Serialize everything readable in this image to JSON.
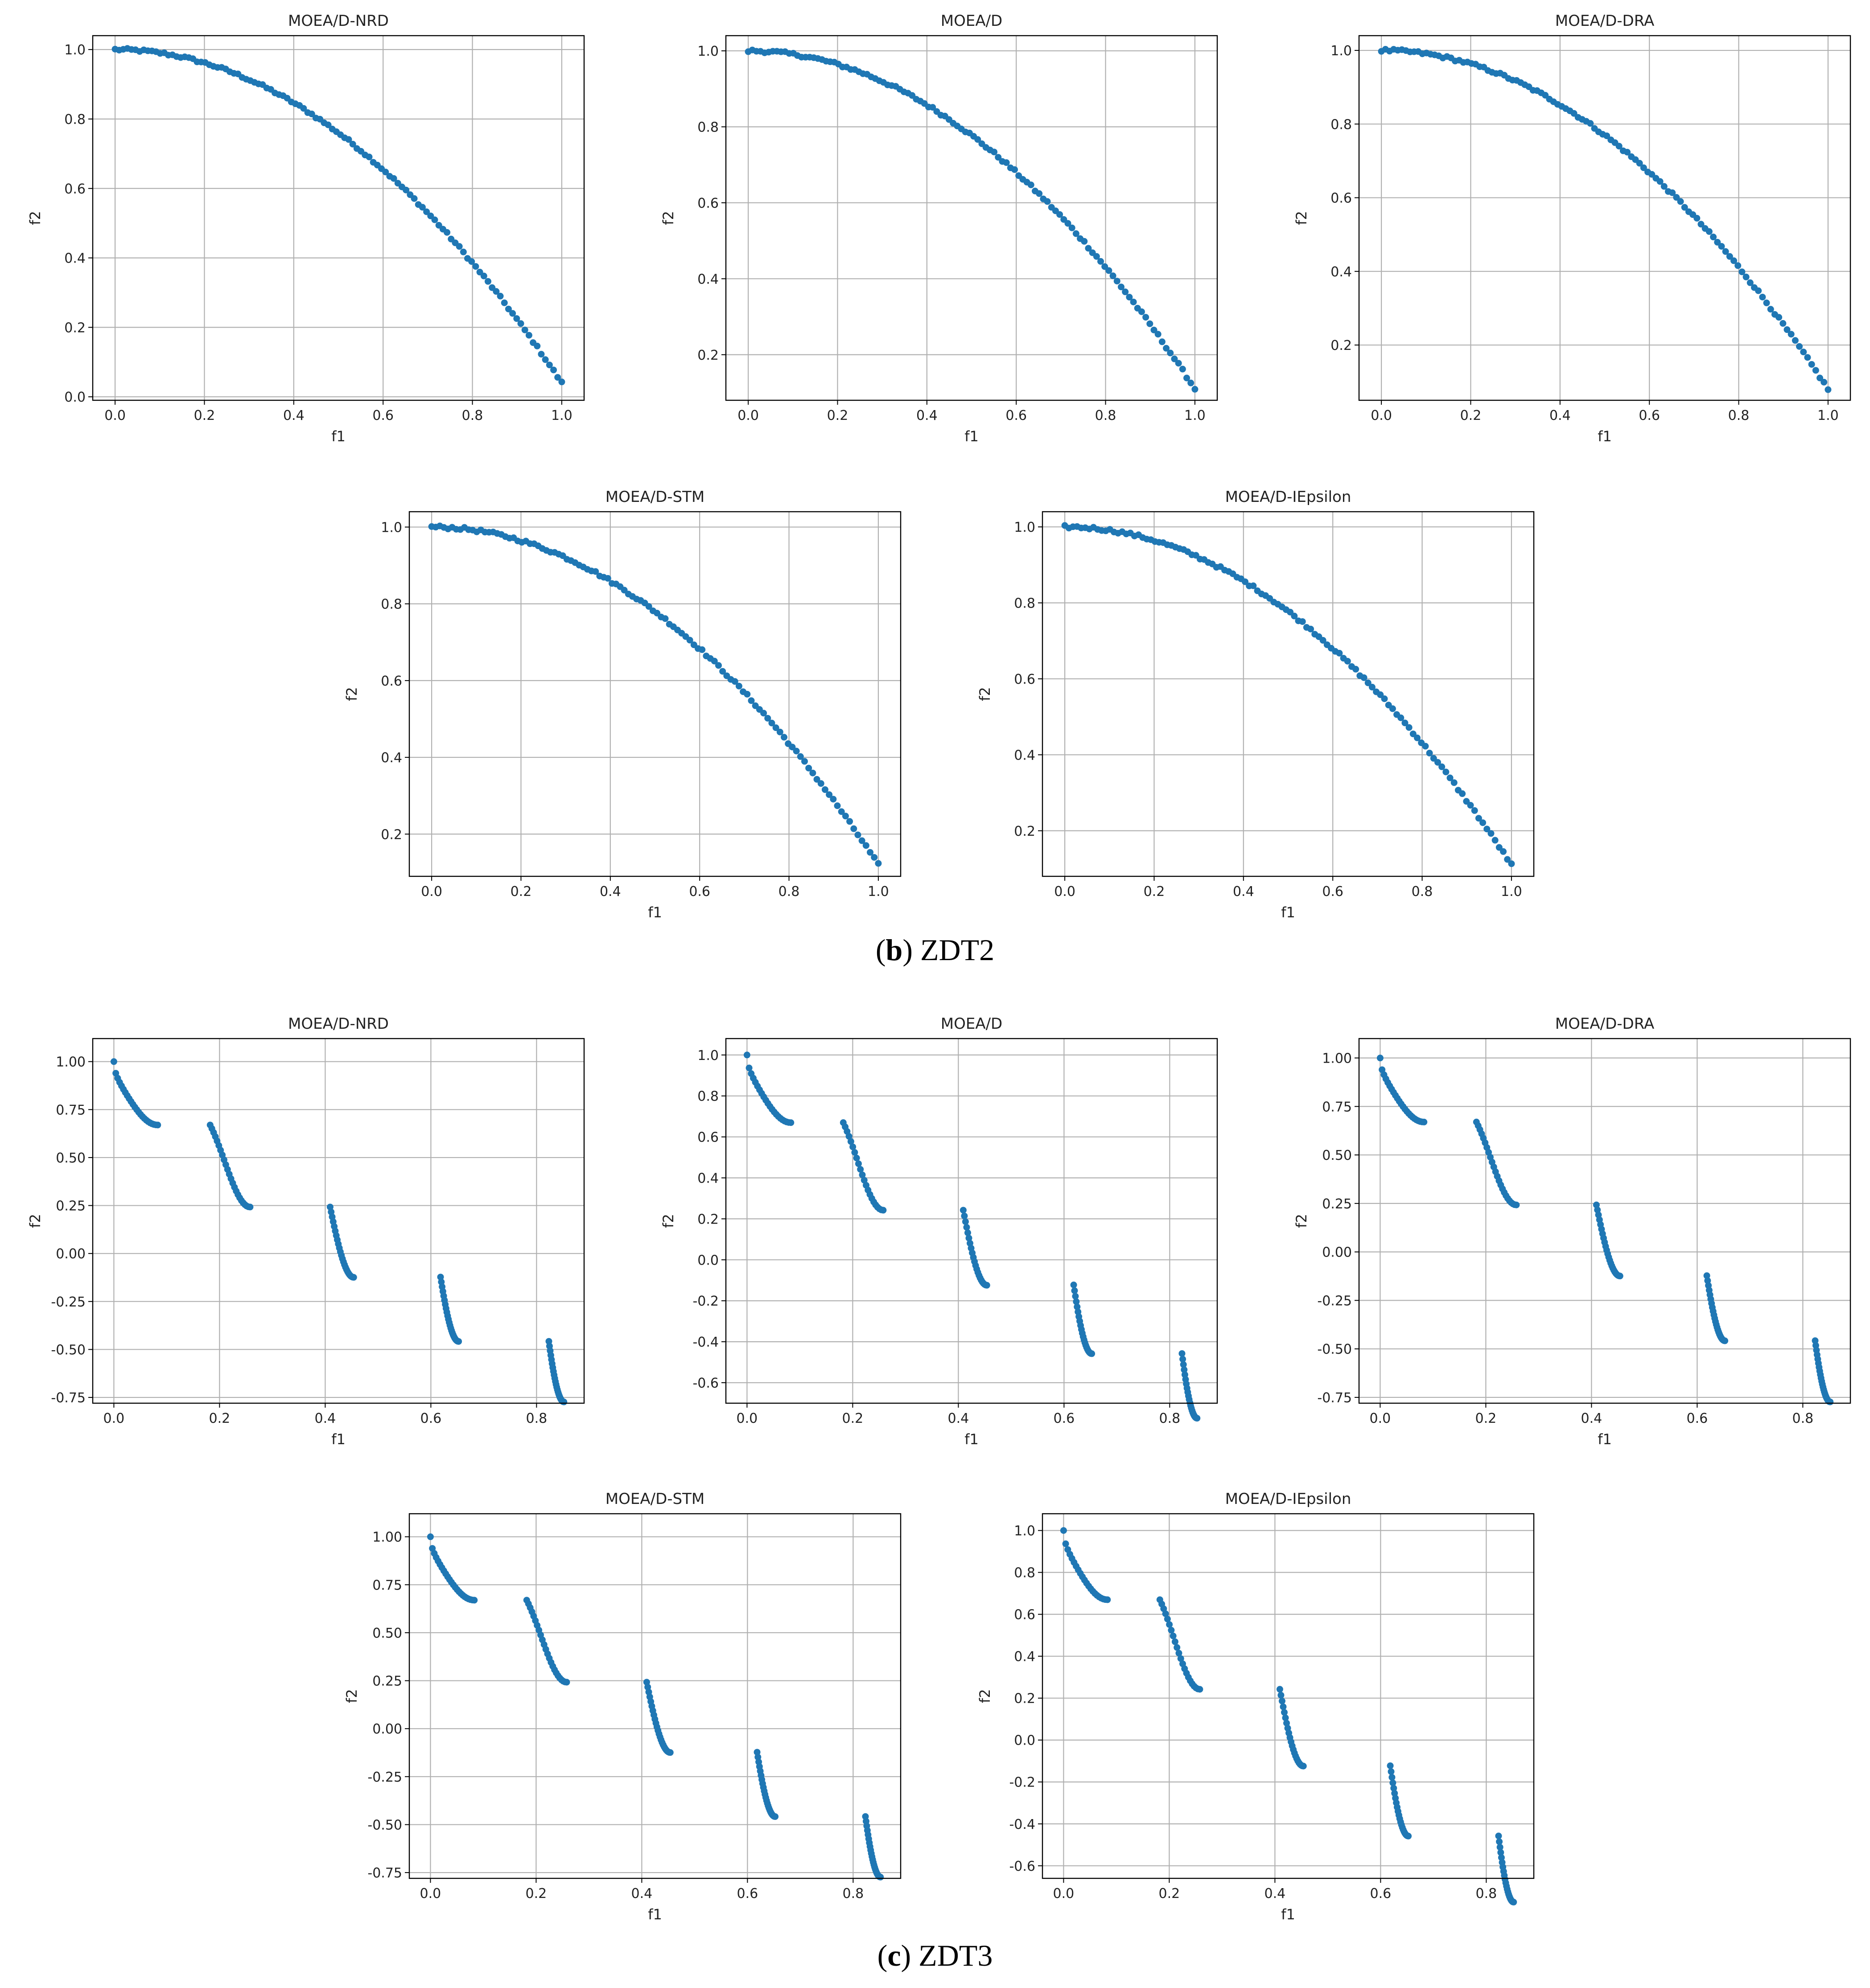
{
  "figure": {
    "marker_color": "#1f77b4",
    "grid": true,
    "captions": [
      {
        "letter": "b",
        "text": " ZDT2"
      },
      {
        "letter": "c",
        "text": " ZDT3"
      }
    ]
  },
  "chart_data": [
    {
      "type": "scatter",
      "group": "ZDT2",
      "title": "MOEA/D-NRD",
      "xlabel": "f1",
      "ylabel": "f2",
      "xlim": [
        -0.05,
        1.05
      ],
      "ylim": [
        -0.01,
        1.04
      ],
      "xticks": [
        0.0,
        0.2,
        0.4,
        0.6,
        0.8,
        1.0
      ],
      "yticks": [
        0.0,
        0.2,
        0.4,
        0.6,
        0.8,
        1.0
      ],
      "tick_decimals": 1,
      "front": "zdt2",
      "x_range": [
        0.0,
        1.0
      ],
      "y_floor": 0.04,
      "n_points": 110
    },
    {
      "type": "scatter",
      "group": "ZDT2",
      "title": "MOEA/D",
      "xlabel": "f1",
      "ylabel": "f2",
      "xlim": [
        -0.05,
        1.05
      ],
      "ylim": [
        0.08,
        1.04
      ],
      "xticks": [
        0.0,
        0.2,
        0.4,
        0.6,
        0.8,
        1.0
      ],
      "yticks": [
        0.2,
        0.4,
        0.6,
        0.8,
        1.0
      ],
      "tick_decimals": 1,
      "front": "zdt2",
      "x_range": [
        0.0,
        1.0
      ],
      "y_floor": 0.11,
      "n_points": 110
    },
    {
      "type": "scatter",
      "group": "ZDT2",
      "title": "MOEA/D-DRA",
      "xlabel": "f1",
      "ylabel": "f2",
      "xlim": [
        -0.05,
        1.05
      ],
      "ylim": [
        0.05,
        1.04
      ],
      "xticks": [
        0.0,
        0.2,
        0.4,
        0.6,
        0.8,
        1.0
      ],
      "yticks": [
        0.2,
        0.4,
        0.6,
        0.8,
        1.0
      ],
      "tick_decimals": 1,
      "front": "zdt2",
      "x_range": [
        0.0,
        1.0
      ],
      "y_floor": 0.08,
      "n_points": 110
    },
    {
      "type": "scatter",
      "group": "ZDT2",
      "title": "MOEA/D-STM",
      "xlabel": "f1",
      "ylabel": "f2",
      "xlim": [
        -0.05,
        1.05
      ],
      "ylim": [
        0.09,
        1.04
      ],
      "xticks": [
        0.0,
        0.2,
        0.4,
        0.6,
        0.8,
        1.0
      ],
      "yticks": [
        0.2,
        0.4,
        0.6,
        0.8,
        1.0
      ],
      "tick_decimals": 1,
      "front": "zdt2",
      "x_range": [
        0.0,
        1.0
      ],
      "y_floor": 0.12,
      "n_points": 110
    },
    {
      "type": "scatter",
      "group": "ZDT2",
      "title": "MOEA/D-IEpsilon",
      "xlabel": "f1",
      "ylabel": "f2",
      "xlim": [
        -0.05,
        1.05
      ],
      "ylim": [
        0.08,
        1.04
      ],
      "xticks": [
        0.0,
        0.2,
        0.4,
        0.6,
        0.8,
        1.0
      ],
      "yticks": [
        0.2,
        0.4,
        0.6,
        0.8,
        1.0
      ],
      "tick_decimals": 1,
      "front": "zdt2",
      "x_range": [
        0.0,
        1.0
      ],
      "y_floor": 0.11,
      "n_points": 110
    },
    {
      "type": "scatter",
      "group": "ZDT3",
      "title": "MOEA/D-NRD",
      "xlabel": "f1",
      "ylabel": "f2",
      "xlim": [
        -0.04,
        0.89
      ],
      "ylim": [
        -0.78,
        1.12
      ],
      "xticks": [
        0.0,
        0.2,
        0.4,
        0.6,
        0.8
      ],
      "yticks": [
        -0.75,
        -0.5,
        -0.25,
        0.0,
        0.25,
        0.5,
        0.75,
        1.0
      ],
      "tick_decimals": 2,
      "front": "zdt3",
      "points_per_segment": 24
    },
    {
      "type": "scatter",
      "group": "ZDT3",
      "title": "MOEA/D",
      "xlabel": "f1",
      "ylabel": "f2",
      "xlim": [
        -0.04,
        0.89
      ],
      "ylim": [
        -0.7,
        1.08
      ],
      "xticks": [
        0.0,
        0.2,
        0.4,
        0.6,
        0.8
      ],
      "yticks": [
        -0.6,
        -0.4,
        -0.2,
        0.0,
        0.2,
        0.4,
        0.6,
        0.8,
        1.0
      ],
      "tick_decimals": 1,
      "front": "zdt3",
      "points_per_segment": 22
    },
    {
      "type": "scatter",
      "group": "ZDT3",
      "title": "MOEA/D-DRA",
      "xlabel": "f1",
      "ylabel": "f2",
      "xlim": [
        -0.04,
        0.89
      ],
      "ylim": [
        -0.78,
        1.1
      ],
      "xticks": [
        0.0,
        0.2,
        0.4,
        0.6,
        0.8
      ],
      "yticks": [
        -0.75,
        -0.5,
        -0.25,
        0.0,
        0.25,
        0.5,
        0.75,
        1.0
      ],
      "tick_decimals": 2,
      "front": "zdt3",
      "points_per_segment": 24
    },
    {
      "type": "scatter",
      "group": "ZDT3",
      "title": "MOEA/D-STM",
      "xlabel": "f1",
      "ylabel": "f2",
      "xlim": [
        -0.04,
        0.89
      ],
      "ylim": [
        -0.78,
        1.12
      ],
      "xticks": [
        0.0,
        0.2,
        0.4,
        0.6,
        0.8
      ],
      "yticks": [
        -0.75,
        -0.5,
        -0.25,
        0.0,
        0.25,
        0.5,
        0.75,
        1.0
      ],
      "tick_decimals": 2,
      "front": "zdt3",
      "points_per_segment": 24
    },
    {
      "type": "scatter",
      "group": "ZDT3",
      "title": "MOEA/D-IEpsilon",
      "xlabel": "f1",
      "ylabel": "f2",
      "xlim": [
        -0.04,
        0.89
      ],
      "ylim": [
        -0.66,
        1.08
      ],
      "xticks": [
        0.0,
        0.2,
        0.4,
        0.6,
        0.8
      ],
      "yticks": [
        -0.6,
        -0.4,
        -0.2,
        0.0,
        0.2,
        0.4,
        0.6,
        0.8,
        1.0
      ],
      "tick_decimals": 1,
      "front": "zdt3",
      "points_per_segment": 22
    }
  ]
}
